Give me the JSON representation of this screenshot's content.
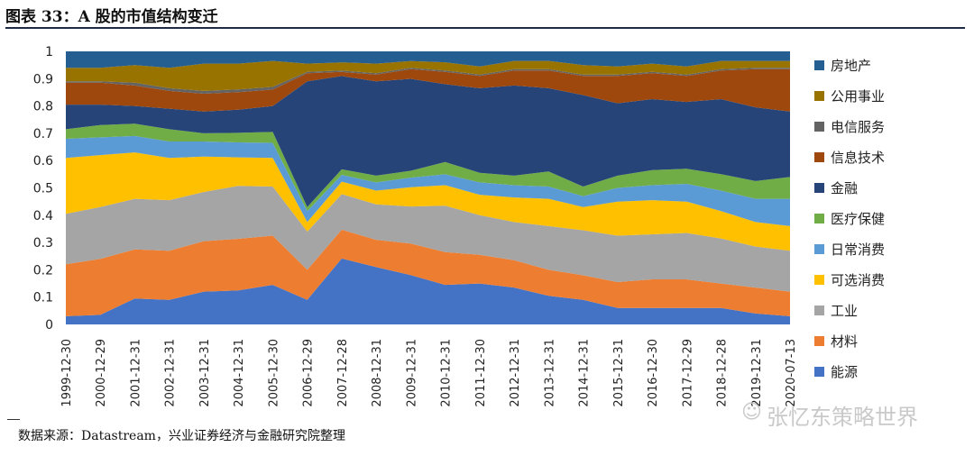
{
  "title": "图表 33：A 股的市值结构变迁",
  "source": "数据来源：Datastream，兴业证券经济与金融研究院整理",
  "watermark": "张忆东策略世界",
  "watermark_icon": "wechat-icon",
  "chart_data": {
    "type": "area",
    "stacked": true,
    "ylim": [
      0,
      1
    ],
    "yticks": [
      "0",
      "0.1",
      "0.2",
      "0.3",
      "0.4",
      "0.5",
      "0.6",
      "0.7",
      "0.8",
      "0.9",
      "1"
    ],
    "grid": false,
    "legend_position": "right",
    "categories": [
      "1999-12-30",
      "2000-12-29",
      "2001-12-31",
      "2002-12-31",
      "2003-12-31",
      "2004-12-31",
      "2005-12-30",
      "2006-12-29",
      "2007-12-28",
      "2008-12-31",
      "2009-12-31",
      "2010-12-31",
      "2011-12-30",
      "2012-12-31",
      "2013-12-31",
      "2014-12-31",
      "2015-12-31",
      "2016-12-30",
      "2017-12-29",
      "2018-12-28",
      "2019-12-31",
      "2020-07-13"
    ],
    "series": [
      {
        "name": "能源",
        "color": "#4472c4",
        "values": [
          0.03,
          0.035,
          0.095,
          0.09,
          0.12,
          0.125,
          0.145,
          0.09,
          0.24,
          0.21,
          0.18,
          0.145,
          0.15,
          0.135,
          0.105,
          0.09,
          0.06,
          0.06,
          0.06,
          0.06,
          0.04,
          0.03
        ]
      },
      {
        "name": "材料",
        "color": "#ed7d31",
        "values": [
          0.19,
          0.205,
          0.18,
          0.18,
          0.185,
          0.19,
          0.18,
          0.11,
          0.105,
          0.1,
          0.115,
          0.12,
          0.105,
          0.1,
          0.095,
          0.09,
          0.095,
          0.105,
          0.105,
          0.09,
          0.095,
          0.09
        ]
      },
      {
        "name": "工业",
        "color": "#a5a5a5",
        "values": [
          0.185,
          0.19,
          0.185,
          0.185,
          0.18,
          0.195,
          0.18,
          0.14,
          0.13,
          0.13,
          0.135,
          0.17,
          0.145,
          0.14,
          0.16,
          0.165,
          0.17,
          0.165,
          0.17,
          0.165,
          0.15,
          0.15
        ]
      },
      {
        "name": "可选消费",
        "color": "#ffc000",
        "values": [
          0.205,
          0.19,
          0.17,
          0.155,
          0.13,
          0.105,
          0.105,
          0.035,
          0.045,
          0.05,
          0.07,
          0.075,
          0.075,
          0.09,
          0.1,
          0.085,
          0.125,
          0.125,
          0.115,
          0.1,
          0.09,
          0.09
        ]
      },
      {
        "name": "日常消费",
        "color": "#5b9bd5",
        "values": [
          0.07,
          0.065,
          0.06,
          0.06,
          0.055,
          0.055,
          0.055,
          0.04,
          0.025,
          0.03,
          0.035,
          0.04,
          0.045,
          0.045,
          0.045,
          0.04,
          0.05,
          0.055,
          0.065,
          0.075,
          0.085,
          0.1
        ]
      },
      {
        "name": "医疗保健",
        "color": "#70ad47",
        "values": [
          0.035,
          0.045,
          0.045,
          0.045,
          0.03,
          0.035,
          0.04,
          0.015,
          0.02,
          0.025,
          0.025,
          0.045,
          0.035,
          0.035,
          0.055,
          0.035,
          0.045,
          0.055,
          0.055,
          0.06,
          0.065,
          0.08
        ]
      },
      {
        "name": "金融",
        "color": "#264478",
        "values": [
          0.09,
          0.075,
          0.065,
          0.075,
          0.08,
          0.085,
          0.095,
          0.46,
          0.34,
          0.345,
          0.335,
          0.285,
          0.31,
          0.33,
          0.305,
          0.335,
          0.265,
          0.26,
          0.245,
          0.275,
          0.27,
          0.24
        ]
      },
      {
        "name": "信息技术",
        "color": "#9e480e",
        "values": [
          0.08,
          0.08,
          0.075,
          0.065,
          0.065,
          0.065,
          0.06,
          0.03,
          0.015,
          0.025,
          0.035,
          0.045,
          0.045,
          0.055,
          0.065,
          0.07,
          0.1,
          0.095,
          0.095,
          0.105,
          0.14,
          0.155
        ]
      },
      {
        "name": "电信服务",
        "color": "#636363",
        "values": [
          0.005,
          0.005,
          0.01,
          0.01,
          0.01,
          0.01,
          0.01,
          0.005,
          0.005,
          0.005,
          0.005,
          0.005,
          0.005,
          0.005,
          0.005,
          0.005,
          0.005,
          0.005,
          0.005,
          0.005,
          0.005,
          0.005
        ]
      },
      {
        "name": "公用事业",
        "color": "#997300",
        "values": [
          0.05,
          0.05,
          0.065,
          0.075,
          0.1,
          0.095,
          0.095,
          0.03,
          0.03,
          0.035,
          0.025,
          0.03,
          0.03,
          0.03,
          0.03,
          0.035,
          0.03,
          0.03,
          0.03,
          0.03,
          0.025,
          0.025
        ]
      },
      {
        "name": "房地产",
        "color": "#255e91",
        "values": [
          0.06,
          0.06,
          0.05,
          0.06,
          0.045,
          0.045,
          0.035,
          0.045,
          0.04,
          0.045,
          0.035,
          0.04,
          0.055,
          0.035,
          0.035,
          0.05,
          0.055,
          0.045,
          0.055,
          0.035,
          0.035,
          0.035
        ]
      }
    ]
  }
}
